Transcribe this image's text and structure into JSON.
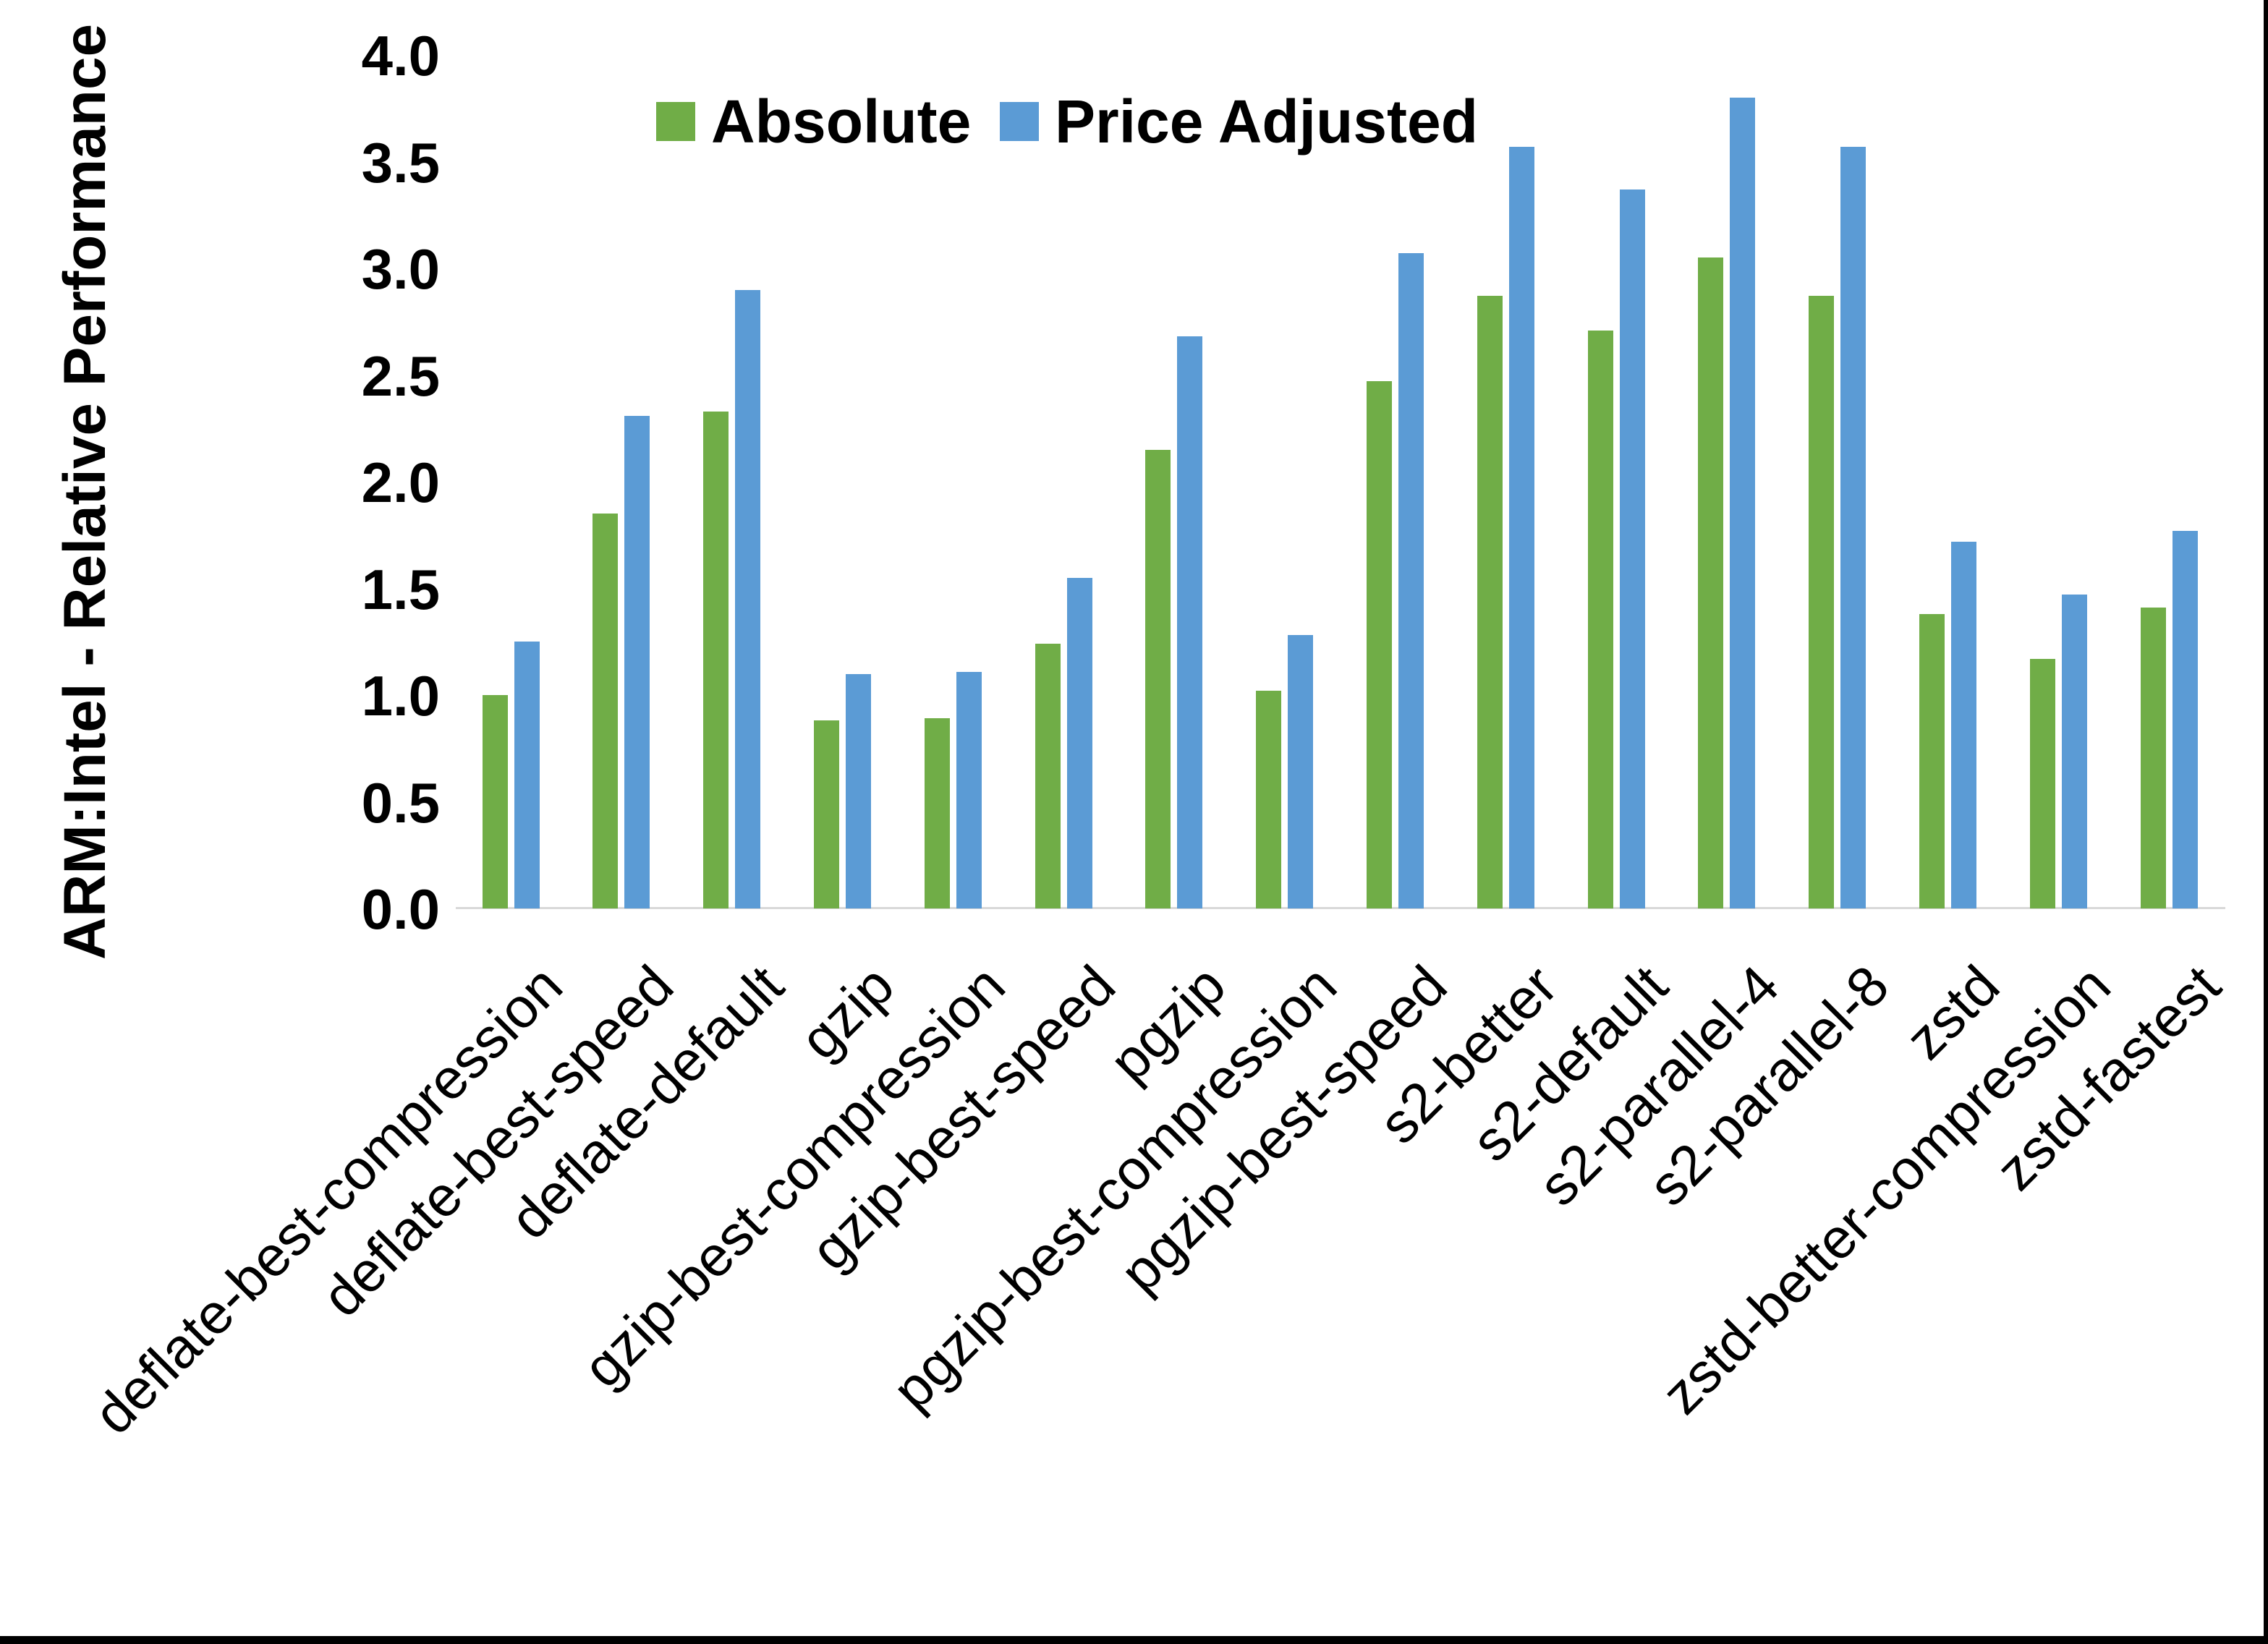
{
  "window": {
    "background_color": "#ffffff",
    "border_color": "#000000"
  },
  "colors": {
    "absolute_series": "#70AD47",
    "price_adjusted_series": "#5B9BD5",
    "axis_line": "#d9d9d9",
    "text": "#000000"
  },
  "y_axis": {
    "title": "ARM:Intel - Relative Performance",
    "tick_labels": [
      "4.0",
      "3.5",
      "3.0",
      "2.5",
      "2.0",
      "1.5",
      "1.0",
      "0.5",
      "0.0"
    ]
  },
  "legend": {
    "items": [
      {
        "label": "Absolute",
        "color": "#70AD47"
      },
      {
        "label": "Price Adjusted",
        "color": "#5B9BD5"
      }
    ]
  },
  "chart_data": {
    "type": "bar",
    "title": "",
    "xlabel": "",
    "ylabel": "ARM:Intel - Relative Performance",
    "ylim": [
      0.0,
      4.0
    ],
    "ytick_interval": 0.5,
    "grid": false,
    "legend_position": "top-center",
    "categories": [
      "deflate-best-compression",
      "deflate-best-speed",
      "deflate-default",
      "gzip",
      "gzip-best-compression",
      "gzip-best-speed",
      "pgzip",
      "pgzip-best-compression",
      "pgzip-best-speed",
      "s2-better",
      "s2-default",
      "s2-parallel-4",
      "s2-parallel-8",
      "zstd",
      "zstd-better-compression",
      "zstd-fastest"
    ],
    "series": [
      {
        "name": "Absolute",
        "color": "#70AD47",
        "values": [
          1.0,
          1.85,
          2.33,
          0.88,
          0.89,
          1.24,
          2.15,
          1.02,
          2.47,
          2.87,
          2.71,
          3.05,
          2.87,
          1.38,
          1.17,
          1.41
        ]
      },
      {
        "name": "Price Adjusted",
        "color": "#5B9BD5",
        "values": [
          1.25,
          2.31,
          2.9,
          1.1,
          1.11,
          1.55,
          2.68,
          1.28,
          3.07,
          3.57,
          3.37,
          3.8,
          3.57,
          1.72,
          1.47,
          1.77
        ]
      }
    ]
  }
}
